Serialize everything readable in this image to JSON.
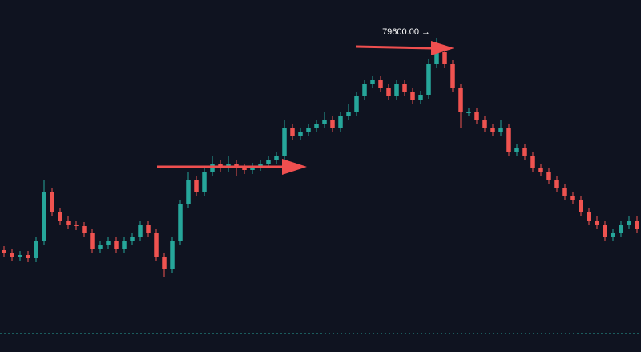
{
  "chart_data": {
    "type": "candlestick",
    "open": [
      76960,
      76930,
      76880,
      76900,
      76860,
      77080,
      77680,
      77430,
      77330,
      77280,
      77260,
      77180,
      76980,
      77030,
      77080,
      76980,
      77080,
      77130,
      77280,
      77180,
      76880,
      76730,
      77080,
      77530,
      77830,
      77680,
      77930,
      78030,
      77980,
      78030,
      77980,
      77960,
      78000,
      78030,
      78080,
      78130,
      78480,
      78380,
      78430,
      78480,
      78530,
      78580,
      78480,
      78630,
      78680,
      78880,
      79030,
      79080,
      78980,
      78880,
      79030,
      78930,
      78830,
      78900,
      79280,
      79430,
      79280,
      78980,
      78680,
      78680,
      78580,
      78480,
      78430,
      78480,
      78180,
      78230,
      78130,
      77980,
      77930,
      77830,
      77730,
      77630,
      77580,
      77430,
      77330,
      77280,
      77130,
      77180,
      77280,
      77330
    ],
    "high": [
      77010,
      76980,
      76950,
      76950,
      77130,
      77830,
      77730,
      77480,
      77380,
      77330,
      77310,
      77230,
      77080,
      77130,
      77130,
      77130,
      77180,
      77330,
      77330,
      77230,
      76930,
      77130,
      77580,
      77930,
      77880,
      77980,
      78130,
      78080,
      78130,
      78080,
      78030,
      78050,
      78080,
      78130,
      78180,
      78580,
      78530,
      78480,
      78530,
      78580,
      78680,
      78630,
      78680,
      78780,
      78930,
      79080,
      79130,
      79130,
      79030,
      79080,
      79080,
      78980,
      78950,
      79350,
      79600,
      79480,
      79330,
      79030,
      78730,
      78730,
      78630,
      78530,
      78580,
      78530,
      78280,
      78280,
      78180,
      78030,
      77980,
      77880,
      77780,
      77680,
      77630,
      77480,
      77380,
      77330,
      77230,
      77330,
      77380,
      77380
    ],
    "low": [
      76880,
      76830,
      76830,
      76810,
      76810,
      77030,
      77380,
      77280,
      77230,
      77210,
      77130,
      76930,
      76930,
      76980,
      76930,
      76930,
      77030,
      77080,
      77130,
      76830,
      76630,
      76680,
      77030,
      77480,
      77630,
      77630,
      77880,
      77930,
      77930,
      77880,
      77910,
      77910,
      77950,
      77980,
      78030,
      78080,
      78330,
      78330,
      78380,
      78430,
      78480,
      78430,
      78430,
      78580,
      78630,
      78830,
      78980,
      78930,
      78830,
      78830,
      78880,
      78780,
      78780,
      78850,
      79230,
      79230,
      78930,
      78480,
      78630,
      78530,
      78430,
      78380,
      78380,
      78130,
      78130,
      78080,
      77930,
      77880,
      77780,
      77680,
      77580,
      77530,
      77380,
      77280,
      77230,
      77080,
      77080,
      77130,
      77230,
      77180
    ],
    "close": [
      76930,
      76880,
      76900,
      76860,
      77080,
      77680,
      77430,
      77330,
      77280,
      77260,
      77180,
      76980,
      77030,
      77080,
      76980,
      77080,
      77130,
      77280,
      77180,
      76880,
      76730,
      77080,
      77530,
      77830,
      77680,
      77930,
      78030,
      77980,
      78030,
      77980,
      77960,
      78000,
      78030,
      78080,
      78130,
      78480,
      78380,
      78430,
      78480,
      78530,
      78580,
      78480,
      78630,
      78680,
      78880,
      79030,
      79080,
      78980,
      78880,
      79030,
      78930,
      78830,
      78900,
      79280,
      79430,
      79280,
      78980,
      78680,
      78680,
      78580,
      78480,
      78430,
      78480,
      78180,
      78230,
      78130,
      77980,
      77930,
      77830,
      77730,
      77630,
      77580,
      77430,
      77330,
      77280,
      77130,
      77180,
      77280,
      77330,
      77230
    ],
    "high_label": "79600.00 →",
    "up_color": "#26a69a",
    "down_color": "#ef5350",
    "price_line": 75920,
    "ylim": [
      75690,
      80080
    ]
  }
}
